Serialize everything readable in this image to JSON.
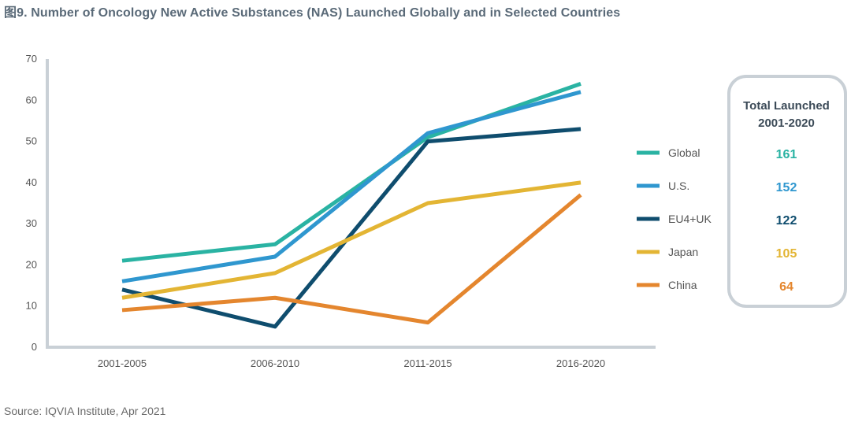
{
  "title": "图9. Number of Oncology New Active Substances (NAS) Launched Globally and in Selected Countries",
  "source": "Source: IQVIA Institute, Apr 2021",
  "chart_data": {
    "type": "line",
    "categories": [
      "2001-2005",
      "2006-2010",
      "2011-2015",
      "2016-2020"
    ],
    "ylim": [
      0,
      70
    ],
    "yticks": [
      0,
      10,
      20,
      30,
      40,
      50,
      60,
      70
    ],
    "grid": false,
    "legend_position": "right",
    "series": [
      {
        "name": "Global",
        "color": "#2ab3a3",
        "values": [
          21,
          25,
          51,
          64
        ],
        "total": "161"
      },
      {
        "name": "U.S.",
        "color": "#2f97cf",
        "values": [
          16,
          22,
          52,
          62
        ],
        "total": "152"
      },
      {
        "name": "EU4+UK",
        "color": "#0f4d6e",
        "values": [
          14,
          5,
          50,
          53
        ],
        "total": "122"
      },
      {
        "name": "Japan",
        "color": "#e3b534",
        "values": [
          12,
          18,
          35,
          40
        ],
        "total": "105"
      },
      {
        "name": "China",
        "color": "#e4862e",
        "values": [
          9,
          12,
          6,
          37
        ],
        "total": "64"
      }
    ],
    "totals_header": [
      "Total Launched",
      "2001-2020"
    ]
  }
}
